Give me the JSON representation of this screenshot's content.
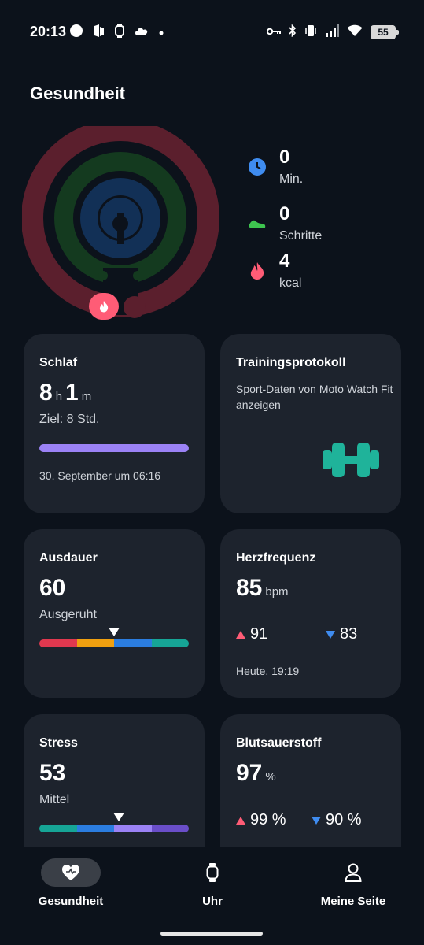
{
  "status_bar": {
    "time": "20:13",
    "battery": "55"
  },
  "page_title": "Gesundheit",
  "activity": {
    "minutes": {
      "value": "0",
      "label": "Min."
    },
    "steps": {
      "value": "0",
      "label": "Schritte"
    },
    "kcal": {
      "value": "4",
      "label": "kcal"
    },
    "colors": {
      "minutes": "#3f8cf0",
      "steps": "#3ec44f",
      "kcal": "#ff5c76"
    }
  },
  "cards": {
    "sleep": {
      "title": "Schlaf",
      "hours": "8",
      "hours_unit": "h",
      "minutes": "1",
      "minutes_unit": "m",
      "goal": "Ziel: 8 Std.",
      "date": "30. September um 06:16",
      "bar_color": "#9b82f5"
    },
    "training": {
      "title": "Trainingsprotokoll",
      "desc": "Sport-Daten von Moto Watch Fit anzeigen",
      "icon_color": "#1fb39a"
    },
    "endurance": {
      "title": "Ausdauer",
      "value": "60",
      "status": "Ausgeruht",
      "marker_fraction": 0.5
    },
    "heart": {
      "title": "Herzfrequenz",
      "value": "85",
      "unit": "bpm",
      "max": "91",
      "min": "83",
      "time": "Heute, 19:19"
    },
    "stress": {
      "title": "Stress",
      "value": "53",
      "status": "Mittel",
      "marker_fraction": 0.53
    },
    "oxygen": {
      "title": "Blutsauerstoff",
      "value": "97",
      "unit": "%",
      "max": "99 %",
      "min": "90 %"
    }
  },
  "nav": {
    "health": "Gesundheit",
    "watch": "Uhr",
    "profile": "Meine Seite"
  }
}
